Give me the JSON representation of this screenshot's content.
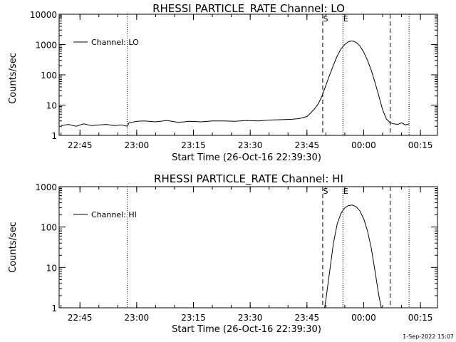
{
  "footer": "1-Sep-2022 15:07",
  "chart_data": [
    {
      "type": "line",
      "title": "RHESSI PARTICLE_RATE Channel: LO",
      "xlabel": "Start Time (26-Oct-16 22:39:30)",
      "ylabel": "Counts/sec",
      "yscale": "log",
      "ylim": [
        1,
        10000
      ],
      "xlim": [
        "22:39:30",
        "00:19:30"
      ],
      "x_ticks": [
        "22:45",
        "23:00",
        "23:15",
        "23:30",
        "23:45",
        "00:00",
        "00:15"
      ],
      "y_ticks": [
        "1",
        "10",
        "100",
        "1000",
        "10000"
      ],
      "legend": {
        "position": "top-left",
        "entries": [
          "Channel: LO"
        ]
      },
      "markers": [
        {
          "label": "",
          "time": "22:57:30",
          "style": "dotted"
        },
        {
          "label": "S",
          "time": "23:49:10",
          "style": "dashed"
        },
        {
          "label": "E",
          "time": "23:54:30",
          "style": "dotted"
        },
        {
          "label": "",
          "time": "00:07:00",
          "style": "dashed"
        },
        {
          "label": "",
          "time": "00:12:00",
          "style": "dotted"
        }
      ],
      "series": [
        {
          "name": "Channel: LO",
          "x": [
            "22:40:00",
            "22:42:00",
            "22:44:00",
            "22:46:00",
            "22:48:00",
            "22:50:00",
            "22:52:00",
            "22:54:00",
            "22:56:00",
            "22:57:30",
            "22:58:00",
            "23:00:00",
            "23:02:00",
            "23:05:00",
            "23:08:00",
            "23:11:00",
            "23:14:00",
            "23:17:00",
            "23:20:00",
            "23:23:00",
            "23:26:00",
            "23:29:00",
            "23:32:00",
            "23:35:00",
            "23:38:00",
            "23:41:00",
            "23:43:00",
            "23:45:00",
            "23:46:00",
            "23:47:00",
            "23:48:00",
            "23:49:00",
            "23:50:00",
            "23:51:00",
            "23:52:00",
            "23:53:00",
            "23:54:00",
            "23:55:00",
            "23:56:00",
            "23:57:00",
            "23:58:00",
            "23:59:00",
            "00:00:00",
            "00:01:00",
            "00:02:00",
            "00:03:00",
            "00:04:00",
            "00:05:00",
            "00:06:00",
            "00:07:00",
            "00:08:00",
            "00:09:00",
            "00:10:00",
            "00:11:00",
            "00:12:00"
          ],
          "values": [
            2.1,
            2.3,
            2.0,
            2.4,
            2.1,
            2.2,
            2.3,
            2.1,
            2.2,
            2.0,
            2.6,
            2.9,
            3.0,
            2.8,
            3.1,
            2.7,
            2.9,
            2.8,
            3.0,
            3.0,
            2.9,
            3.1,
            3.0,
            3.2,
            3.3,
            3.4,
            3.6,
            4.2,
            5.5,
            7.5,
            11,
            20,
            45,
            100,
            210,
            420,
            720,
            1000,
            1250,
            1320,
            1180,
            900,
            560,
            300,
            140,
            55,
            20,
            7,
            3.5,
            2.6,
            2.4,
            2.3,
            2.6,
            2.2,
            2.4
          ]
        }
      ]
    },
    {
      "type": "line",
      "title": "RHESSI PARTICLE_RATE Channel: HI",
      "xlabel": "Start Time (26-Oct-16 22:39:30)",
      "ylabel": "Counts/sec",
      "yscale": "log",
      "ylim": [
        1,
        1000
      ],
      "xlim": [
        "22:39:30",
        "00:19:30"
      ],
      "x_ticks": [
        "22:45",
        "23:00",
        "23:15",
        "23:30",
        "23:45",
        "00:00",
        "00:15"
      ],
      "y_ticks": [
        "1",
        "10",
        "100",
        "1000"
      ],
      "legend": {
        "position": "top-left",
        "entries": [
          "Channel: HI"
        ]
      },
      "markers": [
        {
          "label": "",
          "time": "22:57:30",
          "style": "dotted"
        },
        {
          "label": "S",
          "time": "23:49:10",
          "style": "dashed"
        },
        {
          "label": "E",
          "time": "23:54:30",
          "style": "dotted"
        },
        {
          "label": "",
          "time": "00:07:00",
          "style": "dashed"
        },
        {
          "label": "",
          "time": "00:12:00",
          "style": "dotted"
        }
      ],
      "series": [
        {
          "name": "Channel: HI",
          "x": [
            "23:49:40",
            "23:50:00",
            "23:51:00",
            "23:52:00",
            "23:53:00",
            "23:54:00",
            "23:55:00",
            "23:56:00",
            "23:57:00",
            "23:58:00",
            "23:59:00",
            "00:00:00",
            "00:01:00",
            "00:02:00",
            "00:03:00",
            "00:04:00",
            "00:04:40"
          ],
          "values": [
            1.0,
            1.6,
            8,
            40,
            120,
            220,
            300,
            340,
            350,
            320,
            250,
            160,
            80,
            30,
            8,
            2,
            1.0
          ]
        }
      ]
    }
  ]
}
